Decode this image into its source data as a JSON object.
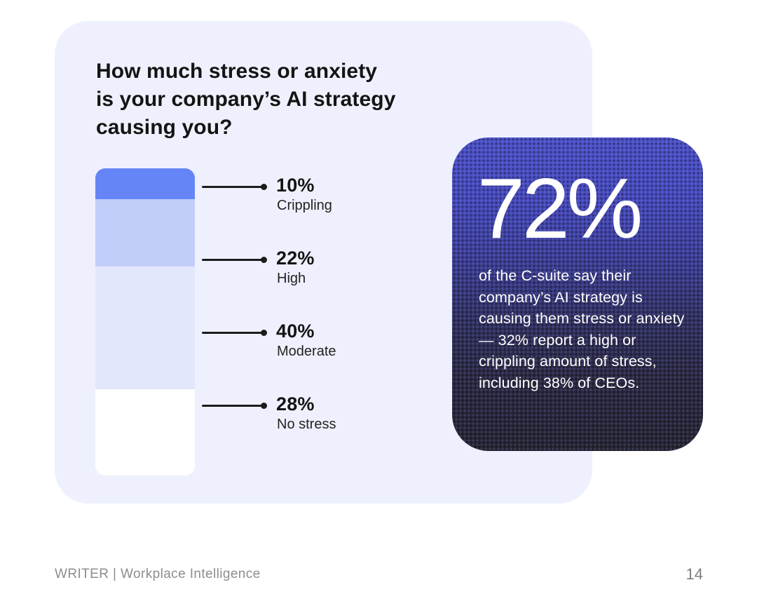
{
  "header": {
    "title": "How much stress or anxiety is your company’s AI strategy causing you?",
    "title_lines": [
      "How much stress or anxiety",
      "is your company’s AI strategy",
      "causing you?"
    ]
  },
  "chart_data": {
    "type": "bar",
    "subtype": "single-stacked-vertical-bar",
    "title": "How much stress or anxiety is your company’s AI strategy causing you?",
    "categories": [
      "Crippling",
      "High",
      "Moderate",
      "No stress"
    ],
    "values": [
      10,
      22,
      40,
      28
    ],
    "unit": "%",
    "value_labels": [
      "10%",
      "22%",
      "40%",
      "28%"
    ],
    "segment_colors": [
      "#6585f7",
      "#c2cdfa",
      "#e3e7fb",
      "#ffffff"
    ],
    "legend_position": "right-annotations",
    "grid": false
  },
  "callout": {
    "stat": "72%",
    "description": "of the C-suite say their company’s AI strategy is causing them stress or anxiety — 32% report a high or crippling amount of stress, including 38% of CEOs.",
    "text_color": "#ffffff",
    "background_top_color": "#4d51c6",
    "background_bottom_color": "#262530"
  },
  "footer": {
    "brand": "WRITER | Workplace Intelligence",
    "page_number": "14"
  },
  "colors": {
    "page_background": "#ffffff",
    "card_background": "#eef1fd",
    "text_primary": "#141414",
    "leader_line": "#1c1c1c",
    "footer_text": "#8d8d8d"
  }
}
